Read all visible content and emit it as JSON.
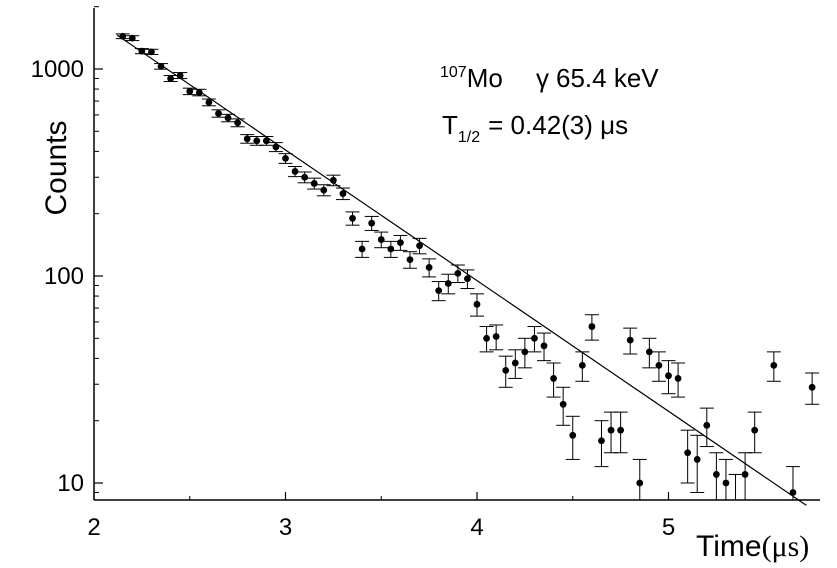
{
  "chart_data": {
    "type": "scatter",
    "title": "",
    "xlabel": "Time",
    "xlabel_unit": "(μs)",
    "ylabel": "Counts",
    "xlim": [
      2.0,
      5.8
    ],
    "ylim": [
      8,
      2000
    ],
    "yscale": "log",
    "grid": false,
    "legend": "none",
    "x_ticks": [
      2,
      3,
      4,
      5
    ],
    "x_tick_labels": [
      "2",
      "3",
      "4",
      "5"
    ],
    "y_ticks": [
      10,
      100,
      1000
    ],
    "y_tick_labels": [
      "10",
      "100",
      "1000"
    ],
    "annotations": {
      "isotope_mass": "107",
      "isotope_symbol": "Mo",
      "gamma_symbol": "γ",
      "gamma_energy": "65.4 keV",
      "halflife_symbol": "T",
      "halflife_sub": "1/2",
      "halflife_value": "= 0.42(3) μs"
    },
    "fit": {
      "type": "exponential",
      "x": [
        2.12,
        5.72
      ],
      "y": [
        1460,
        7.8
      ]
    },
    "series": [
      {
        "marker": "filled-circle",
        "color": "#000000",
        "x": [
          2.15,
          2.2,
          2.25,
          2.3,
          2.35,
          2.4,
          2.45,
          2.5,
          2.55,
          2.6,
          2.65,
          2.7,
          2.75,
          2.8,
          2.85,
          2.9,
          2.95,
          3.0,
          3.05,
          3.1,
          3.15,
          3.2,
          3.25,
          3.3,
          3.35,
          3.4,
          3.45,
          3.5,
          3.55,
          3.6,
          3.65,
          3.7,
          3.75,
          3.8,
          3.85,
          3.9,
          3.95,
          4.0,
          4.05,
          4.1,
          4.15,
          4.2,
          4.25,
          4.3,
          4.35,
          4.4,
          4.45,
          4.5,
          4.55,
          4.6,
          4.65,
          4.7,
          4.75,
          4.8,
          4.85,
          4.9,
          4.95,
          5.0,
          5.05,
          5.1,
          5.15,
          5.2,
          5.25,
          5.3,
          5.35,
          5.4,
          5.45,
          5.55,
          5.65,
          5.75
        ],
        "y": [
          1440,
          1410,
          1220,
          1210,
          1030,
          900,
          930,
          780,
          770,
          690,
          610,
          580,
          550,
          460,
          450,
          450,
          420,
          370,
          320,
          300,
          280,
          260,
          290,
          250,
          190,
          135,
          180,
          150,
          135,
          145,
          120,
          140,
          110,
          85,
          92,
          103,
          97,
          73,
          50,
          51,
          35,
          38,
          43,
          50,
          46,
          32,
          24,
          17,
          37,
          57,
          16,
          18,
          18,
          49,
          10,
          43,
          37,
          33,
          32,
          14,
          13,
          19,
          11,
          10,
          8,
          11,
          18,
          37,
          9,
          29
        ],
        "yerr": [
          38,
          38,
          35,
          35,
          32,
          30,
          31,
          28,
          28,
          26,
          25,
          24,
          24,
          22,
          22,
          22,
          21,
          20,
          18,
          18,
          17,
          16,
          17,
          16,
          14,
          12,
          14,
          13,
          12,
          12,
          11,
          12,
          11,
          9,
          10,
          10,
          10,
          9,
          7,
          7,
          6,
          6,
          7,
          7,
          7,
          6,
          5,
          4,
          6,
          8,
          4,
          4,
          4,
          7,
          3,
          7,
          6,
          6,
          6,
          4,
          4,
          4,
          3,
          3,
          3,
          3,
          4,
          6,
          3,
          5
        ]
      }
    ]
  }
}
